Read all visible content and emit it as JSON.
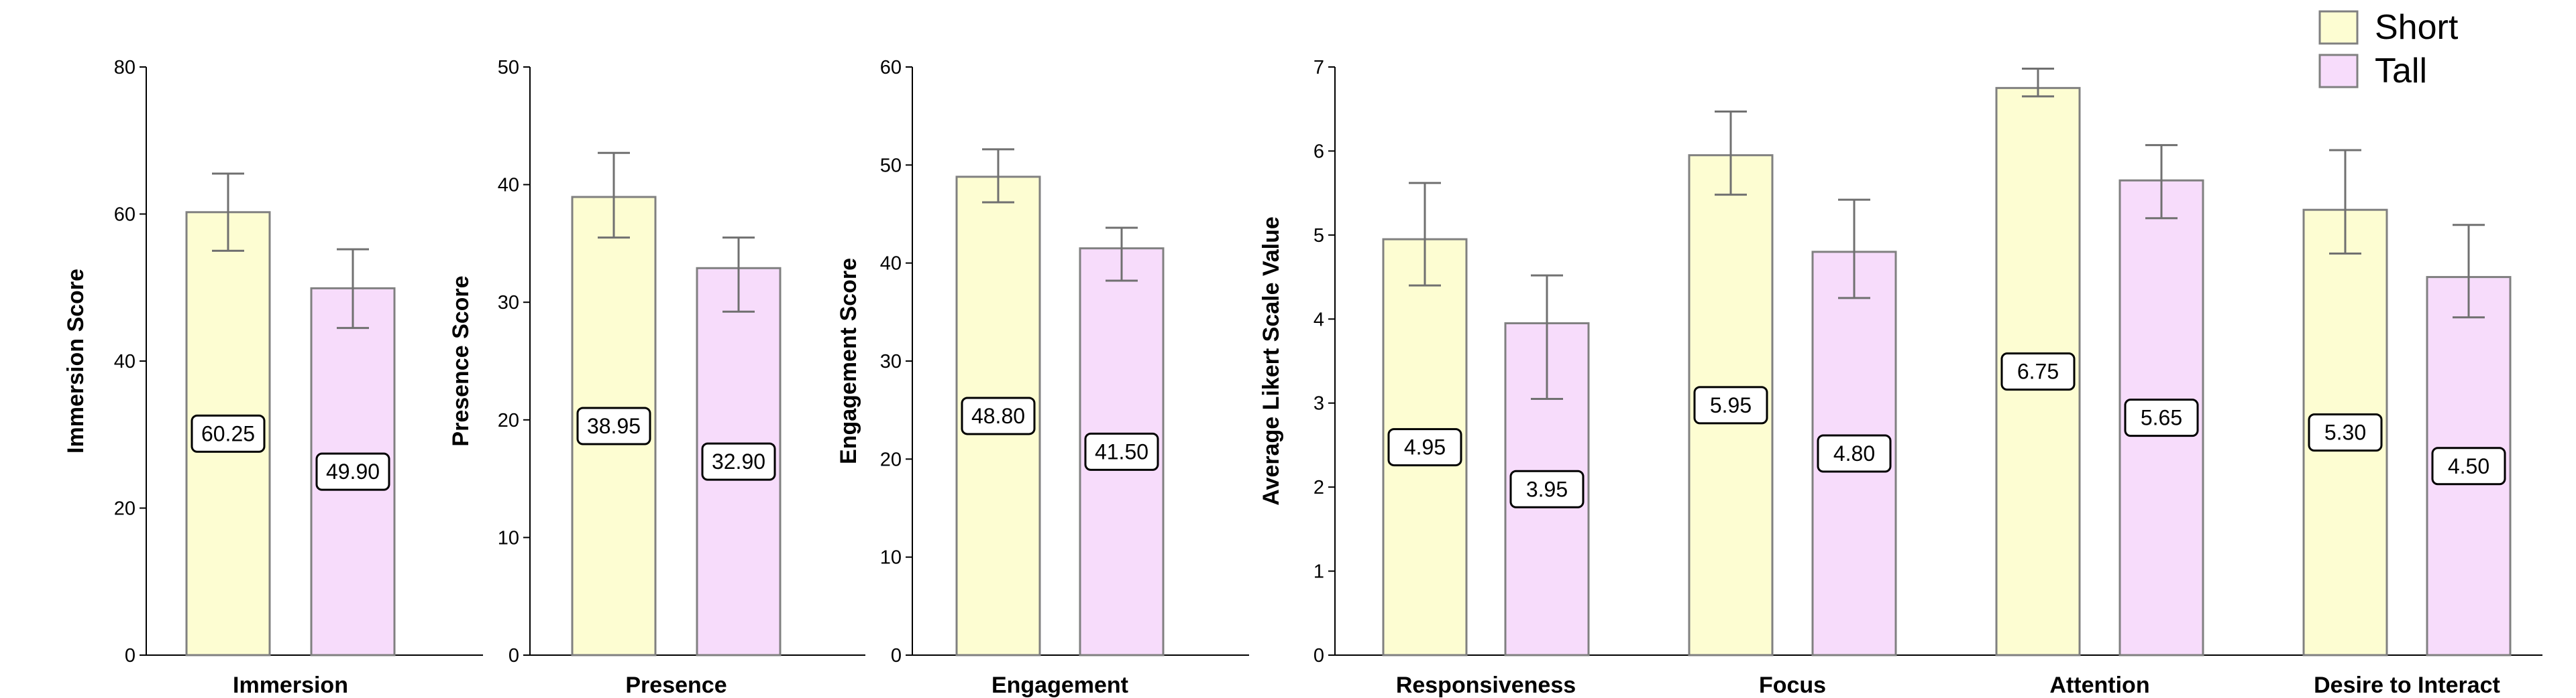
{
  "colors": {
    "Short": "#fdfdd2",
    "Tall": "#f7dcfb",
    "bar_stroke": "#808080",
    "error": "#707070",
    "axis": "#000000"
  },
  "legend": {
    "items": [
      {
        "name": "Short"
      },
      {
        "name": "Tall"
      }
    ],
    "placement": "top-right"
  },
  "chart_data": [
    {
      "type": "bar",
      "categories": [
        "Immersion"
      ],
      "series": [
        {
          "name": "Short",
          "values": [
            60.25
          ],
          "error_low": [
            55.0
          ],
          "error_high": [
            65.5
          ],
          "labels": [
            "60.25"
          ]
        },
        {
          "name": "Tall",
          "values": [
            49.9
          ],
          "error_low": [
            44.5
          ],
          "error_high": [
            55.2
          ],
          "labels": [
            "49.90"
          ]
        }
      ],
      "ylabel": "Immersion Score",
      "ylim": [
        0,
        80
      ],
      "yticks": [
        0,
        20,
        40,
        60,
        80
      ],
      "ytick_labels": [
        "0",
        "20",
        "40",
        "60",
        "80"
      ]
    },
    {
      "type": "bar",
      "categories": [
        "Presence"
      ],
      "series": [
        {
          "name": "Short",
          "values": [
            38.95
          ],
          "error_low": [
            35.5
          ],
          "error_high": [
            42.7
          ],
          "labels": [
            "38.95"
          ]
        },
        {
          "name": "Tall",
          "values": [
            32.9
          ],
          "error_low": [
            29.2
          ],
          "error_high": [
            35.5
          ],
          "labels": [
            "32.90"
          ]
        }
      ],
      "ylabel": "Presence Score",
      "ylim": [
        0,
        50
      ],
      "yticks": [
        0,
        10,
        20,
        30,
        40,
        50
      ],
      "ytick_labels": [
        "0",
        "10",
        "20",
        "30",
        "40",
        "50"
      ]
    },
    {
      "type": "bar",
      "categories": [
        "Engagement"
      ],
      "series": [
        {
          "name": "Short",
          "values": [
            48.8
          ],
          "error_low": [
            46.2
          ],
          "error_high": [
            51.6
          ],
          "labels": [
            "48.80"
          ]
        },
        {
          "name": "Tall",
          "values": [
            41.5
          ],
          "error_low": [
            38.2
          ],
          "error_high": [
            43.6
          ],
          "labels": [
            "41.50"
          ]
        }
      ],
      "ylabel": "Engagement Score",
      "ylim": [
        0,
        60
      ],
      "yticks": [
        0,
        10,
        20,
        30,
        40,
        50,
        60
      ],
      "ytick_labels": [
        "0",
        "10",
        "20",
        "30",
        "40",
        "50",
        "60"
      ]
    },
    {
      "type": "bar",
      "categories": [
        "Responsiveness",
        "Focus",
        "Attention",
        "Desire to Interact"
      ],
      "series": [
        {
          "name": "Short",
          "values": [
            4.95,
            5.95,
            6.75,
            5.3
          ],
          "error_low": [
            4.4,
            5.48,
            6.65,
            4.78
          ],
          "error_high": [
            5.62,
            6.47,
            6.98,
            6.01
          ],
          "labels": [
            "4.95",
            "5.95",
            "6.75",
            "5.30"
          ]
        },
        {
          "name": "Tall",
          "values": [
            3.95,
            4.8,
            5.65,
            4.5
          ],
          "error_low": [
            3.05,
            4.25,
            5.2,
            4.02
          ],
          "error_high": [
            4.52,
            5.42,
            6.07,
            5.12
          ],
          "labels": [
            "3.95",
            "4.80",
            "5.65",
            "4.50"
          ]
        }
      ],
      "ylabel": "Average Likert Scale Value",
      "ylim": [
        0,
        7
      ],
      "yticks": [
        0,
        1,
        2,
        3,
        4,
        5,
        6,
        7
      ],
      "ytick_labels": [
        "0",
        "1",
        "2",
        "3",
        "4",
        "5",
        "6",
        "7"
      ]
    }
  ]
}
